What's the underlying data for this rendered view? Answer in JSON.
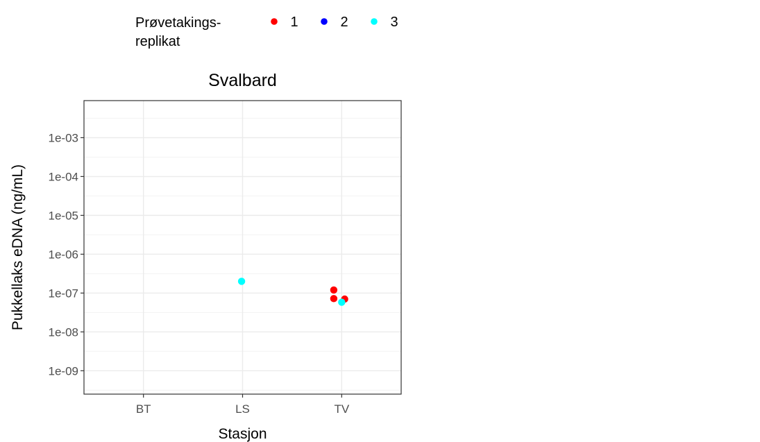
{
  "chart_data": {
    "type": "scatter",
    "title": "Svalbard",
    "xlabel": "Stasjon",
    "ylabel": "Pukkellaks eDNA (ng/mL)",
    "y_scale": "log10",
    "ylim": [
      2.5e-10,
      0.009
    ],
    "categories": [
      "BT",
      "LS",
      "TV"
    ],
    "y_ticks": [
      1e-09,
      1e-08,
      1e-07,
      1e-06,
      1e-05,
      0.0001,
      0.001
    ],
    "y_tick_labels": [
      "1e-09",
      "1e-08",
      "1e-07",
      "1e-06",
      "1e-05",
      "1e-04",
      "1e-03"
    ],
    "grid": true,
    "legend": {
      "title_line1": "Prøvetakings-",
      "title_line2": "replikat",
      "position": "top"
    },
    "series": [
      {
        "name": "1",
        "color": "#ff0000",
        "points": [
          {
            "x": "TV",
            "jitter": -0.08,
            "y": 1.2e-07
          },
          {
            "x": "TV",
            "jitter": -0.08,
            "y": 7.2e-08
          },
          {
            "x": "TV",
            "jitter": 0.03,
            "y": 7e-08
          }
        ]
      },
      {
        "name": "2",
        "color": "#0000ff",
        "points": []
      },
      {
        "name": "3",
        "color": "#00ffff",
        "points": [
          {
            "x": "LS",
            "jitter": -0.01,
            "y": 2e-07
          },
          {
            "x": "TV",
            "jitter": 0.0,
            "y": 5.8e-08
          }
        ]
      }
    ]
  }
}
